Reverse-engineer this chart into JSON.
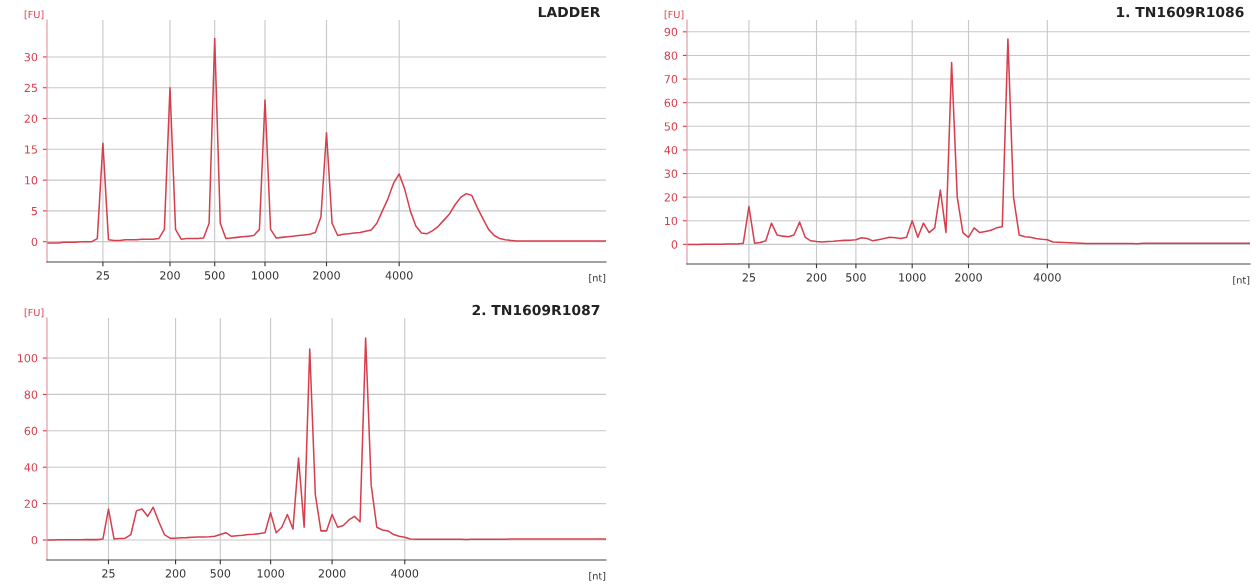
{
  "chart_data": [
    {
      "type": "line",
      "title": "LADDER",
      "xlabel": "[nt]",
      "ylabel": "[FU]",
      "ylim": [
        -3.3,
        36
      ],
      "categories": [
        null,
        null,
        null,
        null,
        null,
        null,
        null,
        null,
        null,
        null,
        "25",
        null,
        null,
        null,
        null,
        null,
        null,
        null,
        null,
        null,
        null,
        null,
        "200",
        null,
        null,
        null,
        null,
        null,
        null,
        null,
        "500",
        null,
        null,
        null,
        null,
        null,
        null,
        null,
        null,
        "1000",
        null,
        null,
        null,
        null,
        null,
        null,
        null,
        null,
        null,
        null,
        "2000",
        null,
        null,
        null,
        null,
        null,
        null,
        null,
        null,
        null,
        null,
        null,
        null,
        "4000",
        null,
        null,
        null,
        null,
        null,
        null,
        null,
        null,
        null,
        null,
        null,
        null,
        null,
        null,
        null,
        null,
        null,
        null,
        null,
        null,
        null,
        null,
        null,
        null,
        null,
        null,
        null,
        null,
        null,
        null,
        null,
        null,
        null,
        null,
        null,
        null,
        null
      ],
      "yticks": [
        0,
        5,
        10,
        15,
        20,
        25,
        30
      ],
      "grid": true,
      "marker": "none",
      "line_style": "solid",
      "series": [
        {
          "color": "#d6404e",
          "values": [
            -0.2,
            -0.2,
            -0.2,
            -0.1,
            -0.1,
            -0.1,
            0,
            0,
            0,
            0.5,
            16,
            0.3,
            0.2,
            0.2,
            0.3,
            0.3,
            0.3,
            0.4,
            0.4,
            0.4,
            0.5,
            2,
            25,
            2,
            0.4,
            0.5,
            0.5,
            0.5,
            0.6,
            3,
            33,
            3,
            0.5,
            0.6,
            0.7,
            0.8,
            0.9,
            1.0,
            2,
            23,
            2,
            0.6,
            0.7,
            0.8,
            0.9,
            1.0,
            1.1,
            1.2,
            1.5,
            4,
            17.7,
            3,
            1.0,
            1.2,
            1.3,
            1.4,
            1.5,
            1.7,
            1.9,
            3,
            5,
            7,
            9.5,
            11,
            8.5,
            5,
            2.5,
            1.4,
            1.3,
            1.8,
            2.5,
            3.5,
            4.5,
            6,
            7.2,
            7.8,
            7.5,
            5.5,
            3.7,
            2,
            1,
            0.5,
            0.3,
            0.2,
            0.1,
            0.1,
            0.1,
            0.1,
            0.1,
            0.1,
            0.1,
            0.1,
            0.1,
            0.1,
            0.1,
            0.1,
            0.1,
            0.1,
            0.1,
            0.1,
            0.1
          ]
        }
      ]
    },
    {
      "type": "line",
      "title": "1. TN1609R1086",
      "xlabel": "[nt]",
      "ylabel": "[FU]",
      "ylim": [
        -8.3,
        95
      ],
      "categories": [
        null,
        null,
        null,
        null,
        null,
        null,
        null,
        null,
        null,
        null,
        null,
        "25",
        null,
        null,
        null,
        null,
        null,
        null,
        null,
        null,
        null,
        null,
        null,
        "200",
        null,
        null,
        null,
        null,
        null,
        null,
        "500",
        null,
        null,
        null,
        null,
        null,
        null,
        null,
        null,
        null,
        "1000",
        null,
        null,
        null,
        null,
        null,
        null,
        null,
        null,
        null,
        "2000",
        null,
        null,
        null,
        null,
        null,
        null,
        null,
        null,
        null,
        null,
        null,
        null,
        null,
        "4000",
        null,
        null,
        null,
        null,
        null,
        null,
        null,
        null,
        null,
        null,
        null,
        null,
        null,
        null,
        null,
        null,
        null,
        null,
        null,
        null,
        null,
        null,
        null,
        null,
        null,
        null,
        null,
        null,
        null,
        null,
        null,
        null,
        null,
        null,
        null,
        null
      ],
      "yticks": [
        0,
        10,
        20,
        30,
        40,
        50,
        60,
        70,
        80,
        90
      ],
      "grid": true,
      "marker": "none",
      "line_style": "solid",
      "series": [
        {
          "color": "#d6404e",
          "values": [
            0,
            0,
            0,
            0.1,
            0.1,
            0.1,
            0.1,
            0.2,
            0.2,
            0.2,
            0.5,
            16,
            0.5,
            0.8,
            1.5,
            9,
            4,
            3.5,
            3.2,
            4,
            9.5,
            3,
            1.5,
            1.2,
            1,
            1.2,
            1.3,
            1.5,
            1.7,
            1.8,
            2,
            2.8,
            2.5,
            1.5,
            2,
            2.5,
            3,
            2.8,
            2.5,
            3,
            10,
            3,
            9,
            5,
            7,
            23,
            5,
            77,
            20,
            5,
            3,
            7,
            5,
            5.5,
            6,
            7,
            7.5,
            87,
            20,
            4,
            3.2,
            3,
            2.5,
            2.2,
            2,
            1,
            0.9,
            0.8,
            0.7,
            0.6,
            0.5,
            0.4,
            0.4,
            0.4,
            0.4,
            0.4,
            0.4,
            0.4,
            0.4,
            0.4,
            0.3,
            0.5,
            0.5,
            0.5,
            0.5,
            0.5,
            0.5,
            0.5,
            0.5,
            0.5,
            0.5,
            0.5,
            0.5,
            0.5,
            0.5,
            0.5,
            0.5,
            0.5,
            0.5,
            0.5,
            0.5
          ]
        }
      ]
    },
    {
      "type": "line",
      "title": "2. TN1609R1087",
      "xlabel": "[nt]",
      "ylabel": "[FU]",
      "ylim": [
        -11,
        122
      ],
      "categories": [
        null,
        null,
        null,
        null,
        null,
        null,
        null,
        null,
        null,
        null,
        null,
        "25",
        null,
        null,
        null,
        null,
        null,
        null,
        null,
        null,
        null,
        null,
        null,
        "200",
        null,
        null,
        null,
        null,
        null,
        null,
        null,
        "500",
        null,
        null,
        null,
        null,
        null,
        null,
        null,
        null,
        "1000",
        null,
        null,
        null,
        null,
        null,
        null,
        null,
        null,
        null,
        null,
        "2000",
        null,
        null,
        null,
        null,
        null,
        null,
        null,
        null,
        null,
        null,
        null,
        null,
        "4000",
        null,
        null,
        null,
        null,
        null,
        null,
        null,
        null,
        null,
        null,
        null,
        null,
        null,
        null,
        null,
        null,
        null,
        null,
        null,
        null,
        null,
        null,
        null,
        null,
        null,
        null,
        null,
        null,
        null,
        null,
        null,
        null,
        null,
        null,
        null,
        null
      ],
      "yticks": [
        0,
        20,
        40,
        60,
        80,
        100
      ],
      "grid": true,
      "marker": "none",
      "line_style": "solid",
      "series": [
        {
          "color": "#d6404e",
          "values": [
            0,
            0,
            0.1,
            0.1,
            0.1,
            0.1,
            0.1,
            0.2,
            0.2,
            0.2,
            0.5,
            17,
            0.5,
            0.8,
            1,
            3,
            16,
            17,
            13,
            18,
            10,
            3,
            1,
            1,
            1.2,
            1.3,
            1.5,
            1.6,
            1.7,
            1.8,
            2,
            3,
            4,
            2,
            2.3,
            2.6,
            3,
            3.2,
            3.5,
            4,
            15,
            4,
            7,
            14,
            6,
            45,
            7,
            105,
            25,
            5,
            5,
            14,
            7,
            8,
            11,
            13,
            10,
            111,
            30,
            7,
            5.5,
            5,
            3,
            2,
            1.5,
            0.5,
            0.4,
            0.4,
            0.4,
            0.4,
            0.4,
            0.4,
            0.4,
            0.4,
            0.4,
            0.3,
            0.4,
            0.4,
            0.4,
            0.4,
            0.4,
            0.4,
            0.4,
            0.5,
            0.5,
            0.5,
            0.5,
            0.5,
            0.5,
            0.5,
            0.5,
            0.5,
            0.5,
            0.5,
            0.5,
            0.5,
            0.5,
            0.5,
            0.5,
            0.5,
            0.5
          ]
        }
      ]
    }
  ]
}
